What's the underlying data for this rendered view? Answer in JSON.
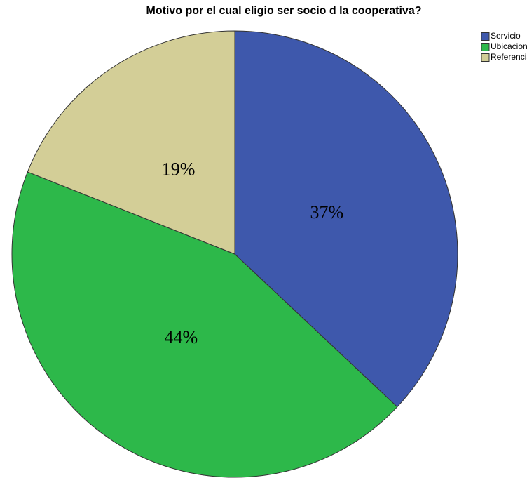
{
  "chart_data": {
    "type": "pie",
    "title": "Motivo por el cual eligio ser socio d la cooperativa?",
    "categories": [
      "Servicio",
      "Ubicacion",
      "Referencia"
    ],
    "values": [
      37,
      44,
      19
    ],
    "value_labels": [
      "37%",
      "44%",
      "19%"
    ],
    "colors": [
      "#3e58ac",
      "#2db84a",
      "#d3ce97"
    ],
    "legend": "top-right"
  }
}
